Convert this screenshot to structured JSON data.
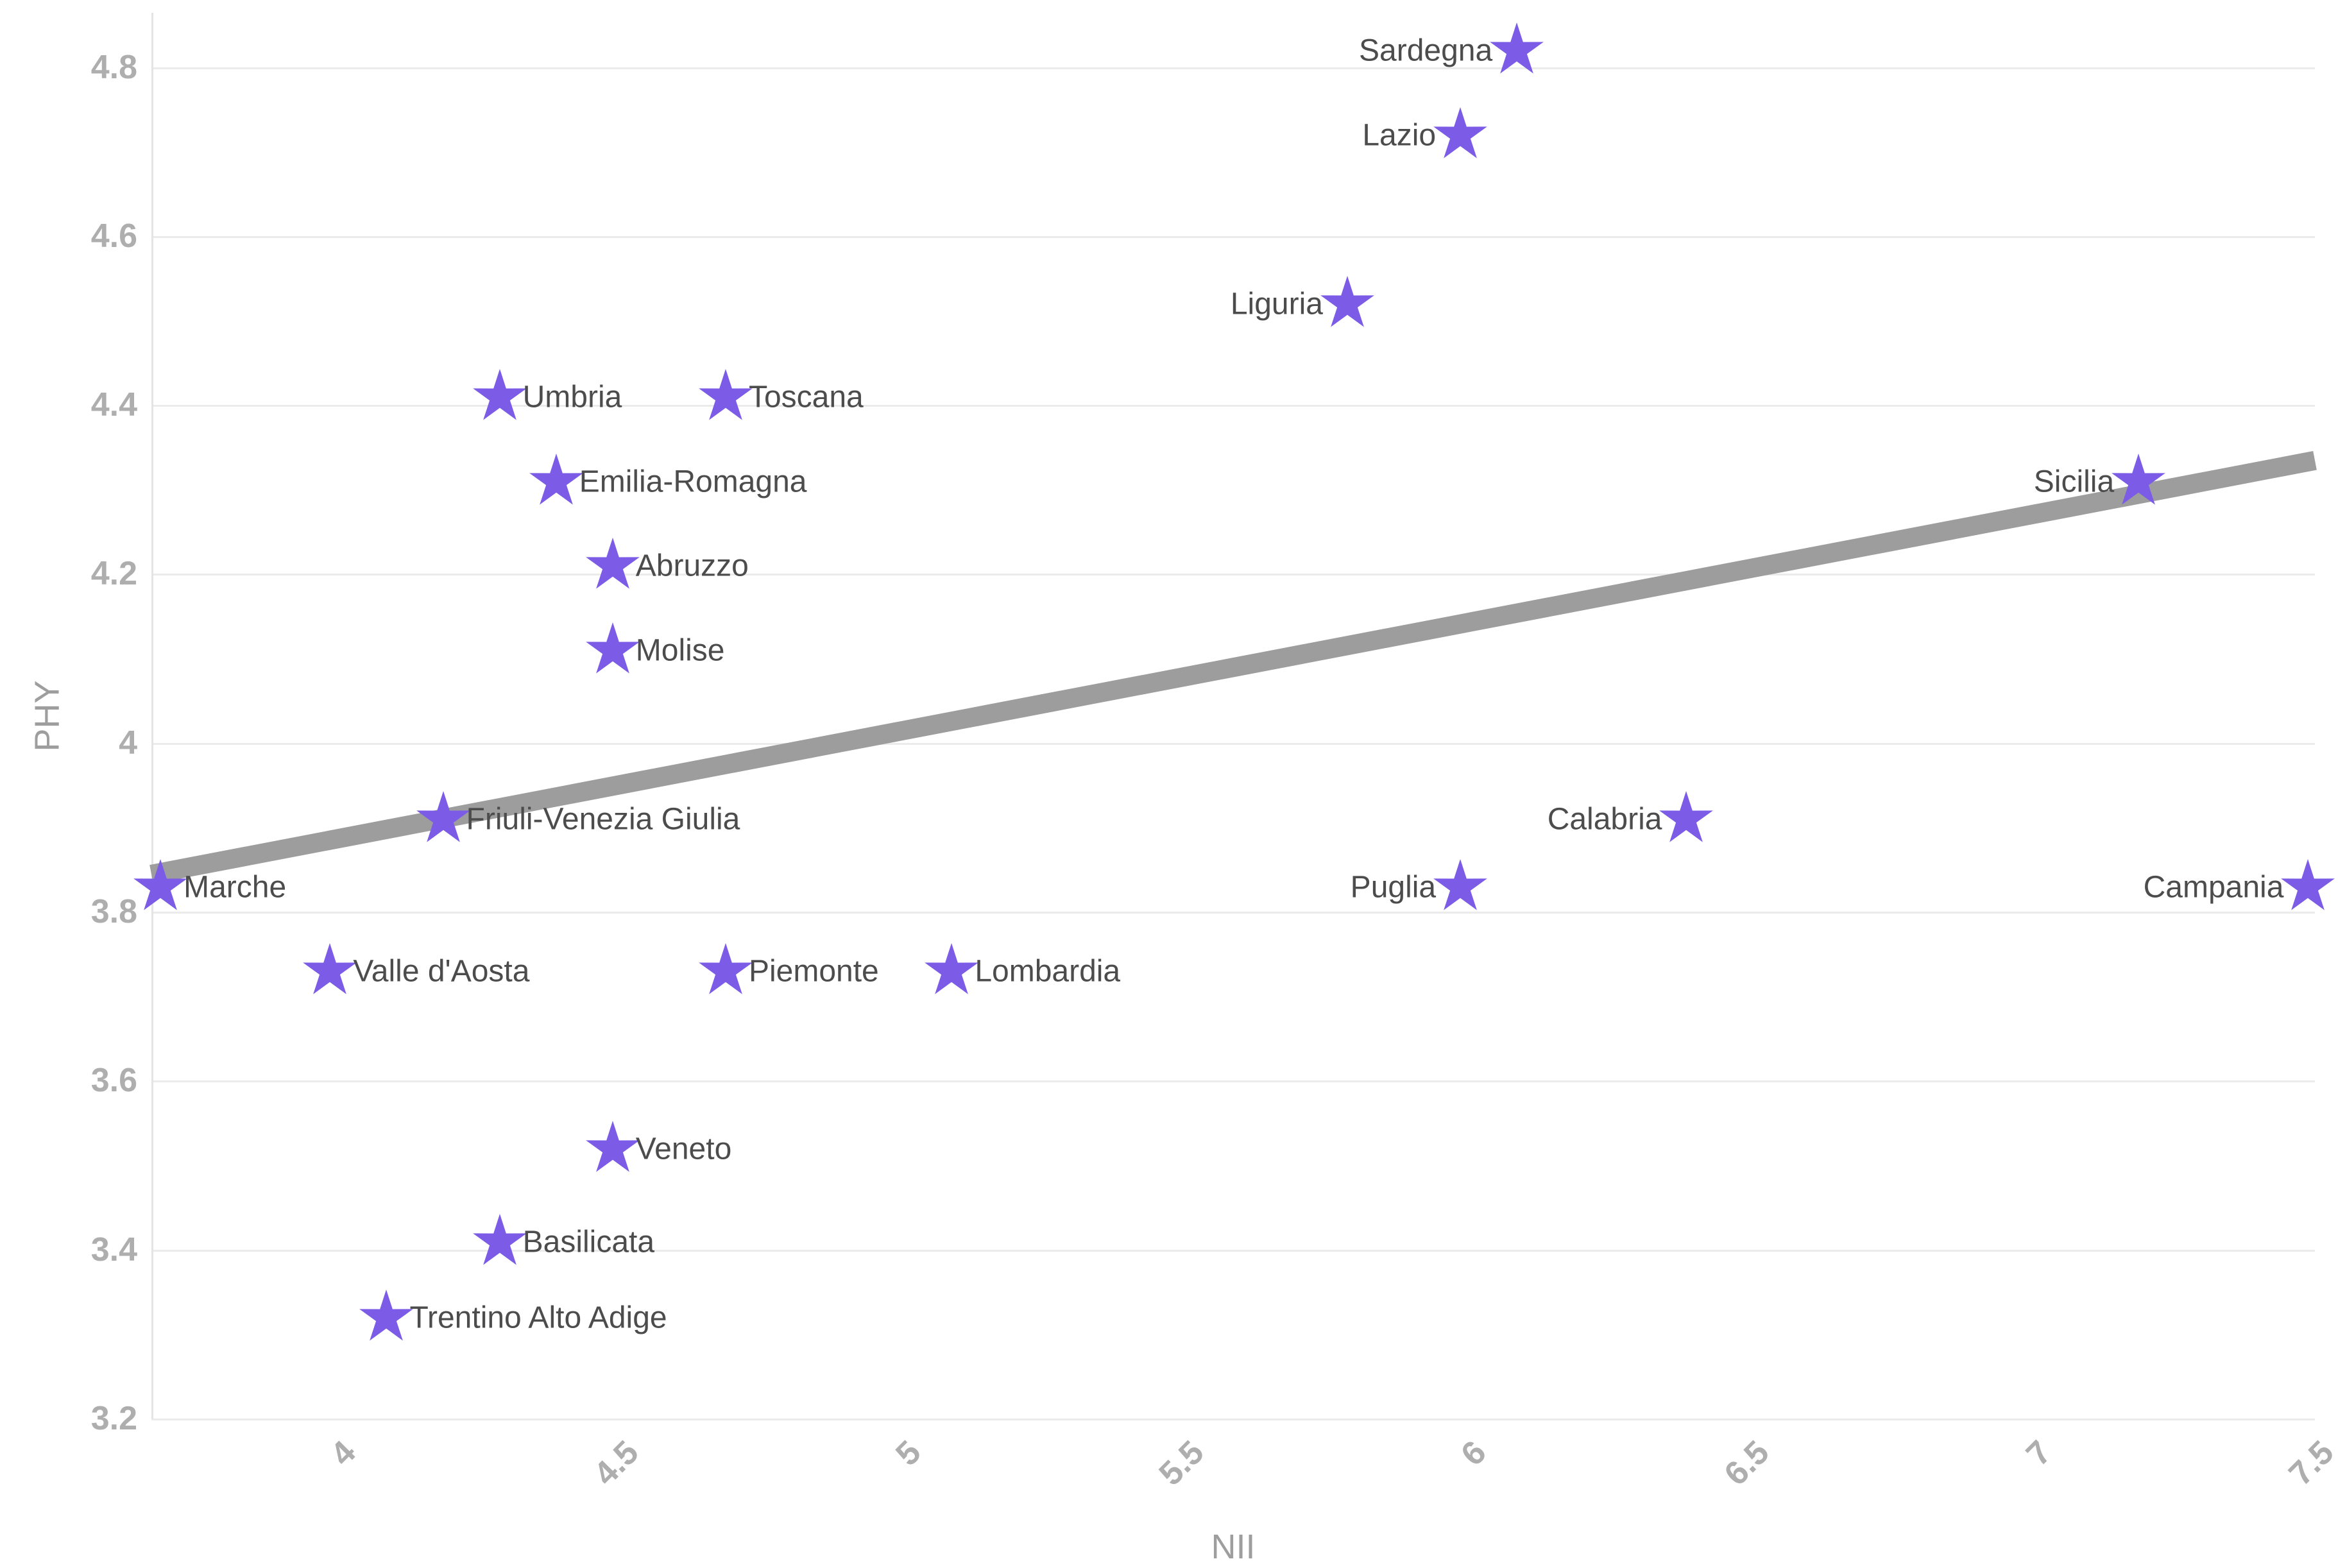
{
  "chart_data": {
    "type": "scatter",
    "title": "",
    "xlabel": "NII",
    "ylabel": "PHY",
    "xlim": [
      3.684,
      7.512
    ],
    "ylim": [
      3.2,
      4.865
    ],
    "x_ticks": {
      "values": [
        4,
        4.5,
        5,
        5.5,
        6,
        6.5,
        7,
        7.5
      ],
      "labels": [
        "4",
        "4.5",
        "5",
        "5.5",
        "6",
        "6.5",
        "7",
        "7.5"
      ]
    },
    "y_ticks": {
      "values": [
        3.2,
        3.4,
        3.6,
        3.8,
        4,
        4.2,
        4.4,
        4.6,
        4.8
      ],
      "labels": [
        "3.2",
        "3.4",
        "3.6",
        "3.8",
        "4",
        "4.2",
        "4.4",
        "4.6",
        "4.8"
      ]
    },
    "grid": "horizontal",
    "legend": "none",
    "marker": {
      "shape": "star",
      "color": "#7c5ce6",
      "size": 88
    },
    "trend_line": {
      "x": [
        3.684,
        7.512
      ],
      "y": [
        3.845,
        4.335
      ],
      "color": "#9d9d9d",
      "width": 30
    },
    "points": [
      {
        "label": "Sardegna",
        "x": 6.1,
        "y": 4.82,
        "side": "left"
      },
      {
        "label": "Lazio",
        "x": 6.0,
        "y": 4.72,
        "side": "left"
      },
      {
        "label": "Liguria",
        "x": 5.8,
        "y": 4.52,
        "side": "left"
      },
      {
        "label": "Umbria",
        "x": 4.3,
        "y": 4.41,
        "side": "right"
      },
      {
        "label": "Toscana",
        "x": 4.7,
        "y": 4.41,
        "side": "right"
      },
      {
        "label": "Emilia-Romagna",
        "x": 4.4,
        "y": 4.31,
        "side": "right"
      },
      {
        "label": "Sicilia",
        "x": 7.2,
        "y": 4.31,
        "side": "left"
      },
      {
        "label": "Abruzzo",
        "x": 4.5,
        "y": 4.21,
        "side": "right"
      },
      {
        "label": "Molise",
        "x": 4.5,
        "y": 4.11,
        "side": "right"
      },
      {
        "label": "Friuli-Venezia Giulia",
        "x": 4.2,
        "y": 3.91,
        "side": "right"
      },
      {
        "label": "Calabria",
        "x": 6.4,
        "y": 3.91,
        "side": "left"
      },
      {
        "label": "Marche",
        "x": 3.7,
        "y": 3.83,
        "side": "right"
      },
      {
        "label": "Puglia",
        "x": 6.0,
        "y": 3.83,
        "side": "left"
      },
      {
        "label": "Campania",
        "x": 7.5,
        "y": 3.83,
        "side": "left"
      },
      {
        "label": "Valle d'Aosta",
        "x": 4.0,
        "y": 3.73,
        "side": "right"
      },
      {
        "label": "Piemonte",
        "x": 4.7,
        "y": 3.73,
        "side": "right"
      },
      {
        "label": "Lombardia",
        "x": 5.1,
        "y": 3.73,
        "side": "right"
      },
      {
        "label": "Veneto",
        "x": 4.5,
        "y": 3.52,
        "side": "right"
      },
      {
        "label": "Basilicata",
        "x": 4.3,
        "y": 3.41,
        "side": "right"
      },
      {
        "label": "Trentino Alto Adige",
        "x": 4.1,
        "y": 3.32,
        "side": "right"
      }
    ]
  }
}
